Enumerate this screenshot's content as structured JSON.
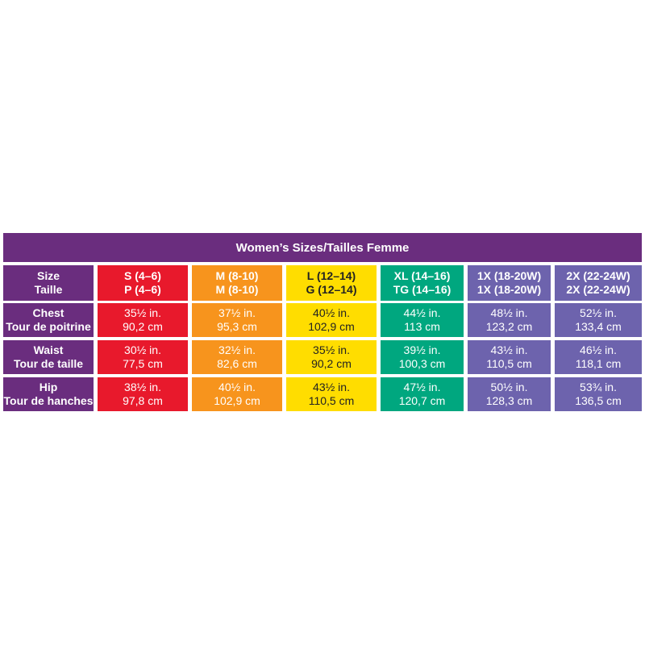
{
  "title": "Women’s Sizes/Tailles Femme",
  "colors": {
    "header": "#6a2d7e",
    "S": "#e8192c",
    "M": "#f7941d",
    "L": "#ffdd00",
    "XL": "#00a77f",
    "1X": "#6d63ad",
    "2X": "#6d63ad"
  },
  "rows": {
    "size": {
      "label": [
        "Size",
        "Taille"
      ]
    },
    "chest": {
      "label": [
        "Chest",
        "Tour de poitrine"
      ]
    },
    "waist": {
      "label": [
        "Waist",
        "Tour de taille"
      ]
    },
    "hip": {
      "label": [
        "Hip",
        "Tour de hanches"
      ]
    }
  },
  "columns": [
    {
      "size": [
        "S (4–6)",
        "P (4–6)"
      ],
      "chest": [
        "35½ in.",
        "90,2 cm"
      ],
      "waist": [
        "30½ in.",
        "77,5 cm"
      ],
      "hip": [
        "38½ in.",
        "97,8 cm"
      ]
    },
    {
      "size": [
        "M (8-10)",
        "M (8-10)"
      ],
      "chest": [
        "37½ in.",
        "95,3 cm"
      ],
      "waist": [
        "32½ in.",
        "82,6 cm"
      ],
      "hip": [
        "40½ in.",
        "102,9 cm"
      ]
    },
    {
      "size": [
        "L (12–14)",
        "G (12–14)"
      ],
      "chest": [
        "40½ in.",
        "102,9 cm"
      ],
      "waist": [
        "35½ in.",
        "90,2 cm"
      ],
      "hip": [
        "43½ in.",
        "110,5 cm"
      ]
    },
    {
      "size": [
        "XL (14–16)",
        "TG (14–16)"
      ],
      "chest": [
        "44½ in.",
        "113 cm"
      ],
      "waist": [
        "39½ in.",
        "100,3 cm"
      ],
      "hip": [
        "47½ in.",
        "120,7 cm"
      ]
    },
    {
      "size": [
        "1X (18-20W)",
        "1X (18-20W)"
      ],
      "chest": [
        "48½ in.",
        "123,2 cm"
      ],
      "waist": [
        "43½ in.",
        "110,5 cm"
      ],
      "hip": [
        "50½ in.",
        "128,3 cm"
      ]
    },
    {
      "size": [
        "2X (22-24W)",
        "2X (22-24W)"
      ],
      "chest": [
        "52½ in.",
        "133,4 cm"
      ],
      "waist": [
        "46½ in.",
        "118,1 cm"
      ],
      "hip": [
        "53¾ in.",
        "136,5 cm"
      ]
    }
  ]
}
